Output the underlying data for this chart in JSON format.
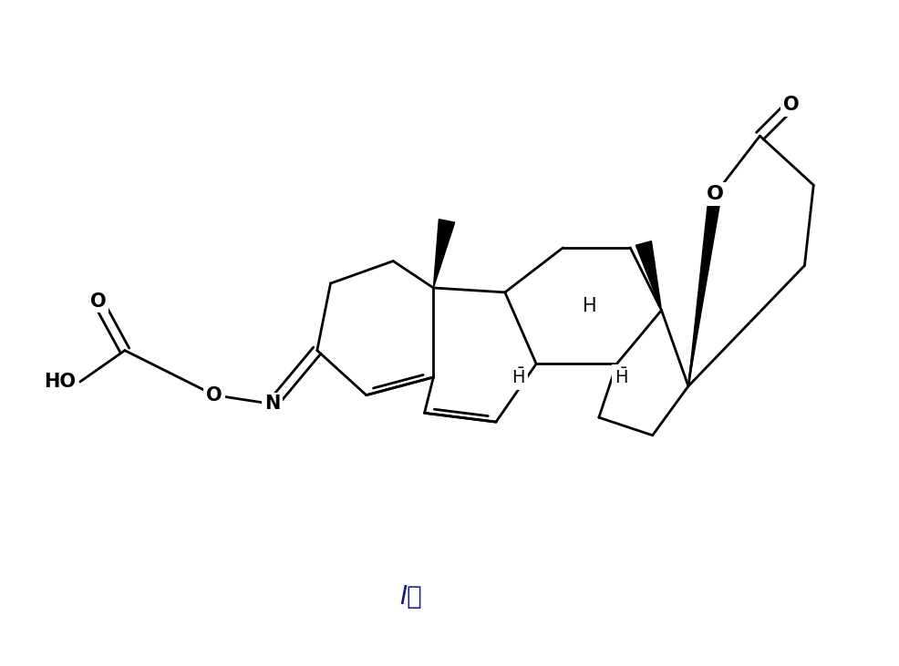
{
  "title": "I。",
  "title_fontsize": 20,
  "title_color": "#1a1a8c",
  "background_color": "#ffffff",
  "line_color": "#000000",
  "line_width": 2.0,
  "figsize": [
    9.86,
    7.31
  ],
  "dpi": 100,
  "xlim": [
    0,
    9.86
  ],
  "ylim": [
    0,
    7.31
  ]
}
